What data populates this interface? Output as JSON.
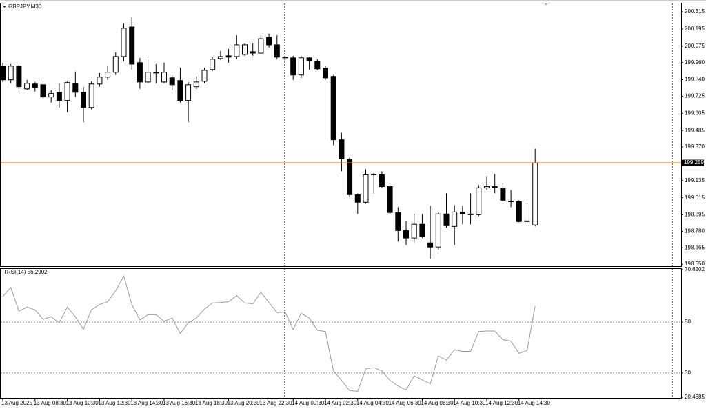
{
  "chart_data": [
    {
      "type": "candlestick",
      "title": "GBPJPY,M30",
      "categories": [
        "13 Aug 2025",
        null,
        null,
        null,
        "13 Aug 08:30",
        null,
        null,
        null,
        "13 Aug 10:30",
        null,
        null,
        null,
        "13 Aug 12:30",
        null,
        null,
        null,
        "13 Aug 14:30",
        null,
        null,
        null,
        "13 Aug 16:30",
        null,
        null,
        null,
        "13 Aug 18:30",
        null,
        null,
        null,
        "13 Aug 20:30",
        null,
        null,
        null,
        "13 Aug 22:30",
        null,
        null,
        null,
        "14 Aug 00:30",
        null,
        null,
        null,
        "14 Aug 02:30",
        null,
        null,
        null,
        "14 Aug 04:30",
        null,
        null,
        null,
        "14 Aug 06:30",
        null,
        null,
        null,
        "14 Aug 08:30",
        null,
        null,
        null,
        "14 Aug 10:30",
        null,
        null,
        null,
        "14 Aug 12:30",
        null,
        null,
        null,
        "14 Aug 14:30",
        null,
        null
      ],
      "open": [
        199.935,
        199.839,
        199.935,
        199.776,
        199.81,
        199.805,
        199.719,
        199.752,
        199.695,
        199.815,
        199.752,
        199.646,
        199.81,
        199.858,
        199.892,
        200.002,
        200.209,
        199.959,
        199.824,
        199.892,
        199.824,
        199.853,
        199.834,
        199.695,
        199.791,
        199.829,
        199.911,
        199.988,
        200.007,
        200.002,
        200.017,
        200.036,
        200.026,
        200.137,
        200.084,
        199.998,
        199.993,
        199.873,
        199.993,
        199.969,
        199.921,
        199.863,
        199.42,
        199.286,
        199.036,
        198.983,
        199.175,
        199.175,
        199.093,
        198.911,
        198.785,
        198.733,
        198.829,
        198.699,
        198.67,
        198.901,
        198.814,
        198.915,
        198.901,
        198.896,
        199.084,
        199.093,
        199.079,
        198.992,
        198.987,
        198.848,
        198.824
      ],
      "high": [
        199.959,
        199.949,
        199.945,
        199.839,
        199.824,
        199.834,
        199.767,
        199.815,
        199.829,
        199.897,
        199.791,
        199.829,
        199.887,
        199.935,
        200.031,
        200.233,
        200.277,
        199.993,
        199.983,
        199.949,
        199.959,
        199.873,
        199.925,
        199.824,
        199.863,
        199.925,
        199.998,
        200.041,
        200.055,
        200.151,
        200.094,
        200.094,
        200.151,
        200.161,
        200.151,
        200.017,
        200.007,
        200.007,
        199.998,
        199.983,
        199.935,
        199.873,
        199.468,
        199.295,
        199.045,
        199.214,
        199.189,
        199.199,
        199.103,
        198.949,
        198.853,
        198.901,
        198.901,
        198.959,
        198.911,
        199.045,
        198.963,
        198.959,
        199.045,
        199.103,
        199.165,
        199.18,
        199.117,
        199.069,
        198.997,
        198.973,
        199.358
      ],
      "low": [
        199.824,
        199.815,
        199.776,
        199.767,
        199.757,
        199.704,
        199.68,
        199.646,
        199.613,
        199.719,
        199.541,
        199.632,
        199.791,
        199.839,
        199.873,
        199.969,
        199.911,
        199.776,
        199.815,
        199.815,
        199.815,
        199.767,
        199.68,
        199.541,
        199.776,
        199.815,
        199.901,
        199.978,
        199.959,
        199.983,
        200.007,
        200.007,
        200.017,
        200.065,
        199.983,
        199.949,
        199.839,
        199.853,
        199.911,
        199.906,
        199.839,
        199.382,
        199.199,
        199.021,
        198.901,
        198.973,
        199.045,
        199.084,
        198.901,
        198.708,
        198.684,
        198.699,
        198.733,
        198.588,
        198.651,
        198.805,
        198.684,
        198.829,
        198.829,
        198.886,
        199.069,
        199.045,
        198.987,
        198.949,
        198.843,
        198.829,
        198.814
      ],
      "close": [
        199.839,
        199.935,
        199.791,
        199.815,
        199.786,
        199.719,
        199.743,
        199.695,
        199.82,
        199.752,
        199.646,
        199.81,
        199.858,
        199.892,
        200.002,
        200.2,
        199.949,
        199.824,
        199.892,
        199.887,
        199.892,
        199.805,
        199.695,
        199.805,
        199.824,
        199.906,
        199.983,
        200.002,
        199.998,
        200.084,
        200.084,
        200.026,
        200.127,
        200.084,
        199.998,
        199.993,
        199.873,
        199.993,
        199.974,
        199.916,
        199.853,
        199.42,
        199.286,
        199.036,
        198.983,
        199.175,
        199.18,
        199.093,
        198.911,
        198.785,
        198.733,
        198.829,
        198.742,
        198.67,
        198.901,
        198.819,
        198.915,
        198.901,
        198.896,
        199.084,
        199.093,
        199.088,
        198.997,
        198.987,
        198.848,
        198.853,
        199.259
      ],
      "ylim": [
        198.536,
        200.373
      ],
      "yticks": [
        200.315,
        200.195,
        200.075,
        {
          "value": 199.96,
          "label": "199.960"
        },
        {
          "value": 199.84,
          "label": "199.840"
        },
        199.725,
        199.605,
        199.485,
        {
          "value": 199.37,
          "label": "199.370"
        },
        199.135,
        199.015,
        198.895,
        {
          "value": 198.78,
          "label": "198.780"
        },
        198.665,
        {
          "value": 198.55,
          "label": "198.550"
        }
      ],
      "color": "#000000",
      "price_line_color": "#ff6a00",
      "grid": false
    },
    {
      "type": "line",
      "title": "TRSI(14) 56.2902",
      "values": [
        60.1,
        63.6,
        54.3,
        55.9,
        54.8,
        51.1,
        52.1,
        49.7,
        55.9,
        52.1,
        47.1,
        54.8,
        56.9,
        58.0,
        62.3,
        68.1,
        56.9,
        50.8,
        52.9,
        52.9,
        50.3,
        51.6,
        45.5,
        49.7,
        51.6,
        55.1,
        57.5,
        57.7,
        58.0,
        60.4,
        57.5,
        57.2,
        61.7,
        57.7,
        53.7,
        54.0,
        47.1,
        53.5,
        51.6,
        46.8,
        46.3,
        30.8,
        27.1,
        23.1,
        22.8,
        31.6,
        32.1,
        30.8,
        27.1,
        24.9,
        23.3,
        28.9,
        27.3,
        25.7,
        36.7,
        35.1,
        39.1,
        38.5,
        38.5,
        46.3,
        46.5,
        46.5,
        43.1,
        42.5,
        37.7,
        38.8,
        56.2902
      ],
      "color": "#999999",
      "ylim": [
        20.4685,
        70.6202
      ],
      "yticks": [
        70.6202,
        50,
        30,
        20.4685
      ],
      "grid": true
    }
  ]
}
